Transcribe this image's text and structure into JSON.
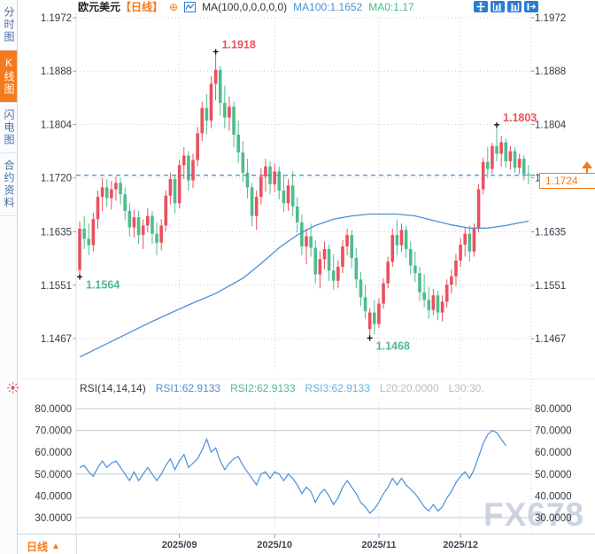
{
  "sidebar": {
    "items": [
      {
        "label": "分时图",
        "selected": false
      },
      {
        "label": "K线图",
        "selected": true
      },
      {
        "label": "闪电图",
        "selected": false
      },
      {
        "label": "合约资料",
        "selected": false
      }
    ]
  },
  "header": {
    "symbol": "欧元美元",
    "period": "【日线】",
    "expand_glyph": "⊕",
    "ma_label": "MA(100,0,0,0,0,0)",
    "ma100": "MA100:1.1652",
    "ma0": "MA0:1.17"
  },
  "toolbar": {
    "icons": [
      "crosshair",
      "compress-chart",
      "expand-chart",
      "shift-right"
    ]
  },
  "price_tag": {
    "value": "1.1724"
  },
  "rsi_header": {
    "name": "RSI(14,14,14)",
    "rsi1": "RSI1:62.9133",
    "rsi2": "RSI2:62.9133",
    "rsi3": "RSI3:62.9133",
    "l20": "L20:20.0000",
    "l30": "L30:30."
  },
  "bottom_bar": {
    "period_label": "日线",
    "arrow": "▲"
  },
  "watermark": "FX678",
  "colors": {
    "up_red": "#e9515f",
    "down_green": "#4fbc8c",
    "ma_blue": "#4a90d9",
    "dashed_blue": "#3f8fdd",
    "grid": "#c9ced6",
    "rsi_grid": "#c4c9d0",
    "axis_text": "#333b47",
    "tick_gray": "#8a95a5",
    "accent_orange": "#f57a1c",
    "rsi1_blue": "#4a90d9",
    "plus_black": "#111111",
    "annotation_high": "#e9515f",
    "annotation_low": "#4fbc8c"
  },
  "chart_data": [
    {
      "type": "candlestick",
      "title": "欧元美元 日线",
      "ylim": [
        1.1467,
        1.1972
      ],
      "y_ticks": [
        "1.1467",
        "1.1551",
        "1.1635",
        "1.1720",
        "1.1804",
        "1.1888",
        "1.1972"
      ],
      "x_ticks": [
        {
          "label": "2025/09",
          "idx": 22
        },
        {
          "label": "2025/10",
          "idx": 43
        },
        {
          "label": "2025/11",
          "idx": 66
        },
        {
          "label": "2025/12",
          "idx": 84
        }
      ],
      "current_price": 1.1724,
      "candles": [
        [
          1.1575,
          1.1652,
          1.1564,
          1.164
        ],
        [
          1.164,
          1.166,
          1.1608,
          1.1624
        ],
        [
          1.1624,
          1.1648,
          1.1598,
          1.1614
        ],
        [
          1.1614,
          1.1665,
          1.1604,
          1.1655
        ],
        [
          1.1655,
          1.17,
          1.164,
          1.169
        ],
        [
          1.169,
          1.172,
          1.1668,
          1.1705
        ],
        [
          1.1705,
          1.1718,
          1.1674,
          1.1688
        ],
        [
          1.1688,
          1.1715,
          1.167,
          1.1702
        ],
        [
          1.1702,
          1.1722,
          1.1684,
          1.1712
        ],
        [
          1.1712,
          1.172,
          1.1678,
          1.1694
        ],
        [
          1.1694,
          1.1705,
          1.1654,
          1.1668
        ],
        [
          1.1668,
          1.168,
          1.1628,
          1.1642
        ],
        [
          1.1642,
          1.167,
          1.1626,
          1.1658
        ],
        [
          1.1658,
          1.1668,
          1.1616,
          1.163
        ],
        [
          1.163,
          1.1655,
          1.1608,
          1.1645
        ],
        [
          1.1645,
          1.1672,
          1.1634,
          1.166
        ],
        [
          1.166,
          1.1668,
          1.1616,
          1.1632
        ],
        [
          1.1632,
          1.165,
          1.1598,
          1.1618
        ],
        [
          1.1618,
          1.1655,
          1.1606,
          1.1645
        ],
        [
          1.1645,
          1.17,
          1.1636,
          1.1692
        ],
        [
          1.1692,
          1.1728,
          1.1678,
          1.1718
        ],
        [
          1.1718,
          1.1724,
          1.1664,
          1.168
        ],
        [
          1.168,
          1.1748,
          1.1672,
          1.174
        ],
        [
          1.174,
          1.1768,
          1.1718,
          1.1755
        ],
        [
          1.1755,
          1.1762,
          1.17,
          1.1716
        ],
        [
          1.1716,
          1.1758,
          1.1704,
          1.1748
        ],
        [
          1.1748,
          1.18,
          1.1738,
          1.179
        ],
        [
          1.179,
          1.184,
          1.1778,
          1.183
        ],
        [
          1.183,
          1.1852,
          1.1788,
          1.181
        ],
        [
          1.181,
          1.188,
          1.1798,
          1.1868
        ],
        [
          1.1868,
          1.1918,
          1.1842,
          1.189
        ],
        [
          1.189,
          1.1896,
          1.1818,
          1.1838
        ],
        [
          1.1838,
          1.1865,
          1.1798,
          1.1815
        ],
        [
          1.1815,
          1.1848,
          1.1794,
          1.1832
        ],
        [
          1.1832,
          1.184,
          1.1768,
          1.1788
        ],
        [
          1.1788,
          1.181,
          1.1744,
          1.176
        ],
        [
          1.176,
          1.1778,
          1.1714,
          1.1728
        ],
        [
          1.1728,
          1.175,
          1.1688,
          1.1705
        ],
        [
          1.1705,
          1.1712,
          1.1644,
          1.166
        ],
        [
          1.166,
          1.17,
          1.1638,
          1.169
        ],
        [
          1.169,
          1.1735,
          1.1678,
          1.1722
        ],
        [
          1.1722,
          1.175,
          1.1698,
          1.1738
        ],
        [
          1.1738,
          1.1746,
          1.1694,
          1.171
        ],
        [
          1.171,
          1.1742,
          1.1698,
          1.173
        ],
        [
          1.173,
          1.1738,
          1.1686,
          1.17
        ],
        [
          1.17,
          1.1725,
          1.1666,
          1.168
        ],
        [
          1.168,
          1.1718,
          1.1668,
          1.1708
        ],
        [
          1.1708,
          1.173,
          1.166,
          1.1675
        ],
        [
          1.1675,
          1.169,
          1.1634,
          1.165
        ],
        [
          1.165,
          1.1662,
          1.1598,
          1.1612
        ],
        [
          1.1612,
          1.164,
          1.1584,
          1.1628
        ],
        [
          1.1628,
          1.1648,
          1.1596,
          1.161
        ],
        [
          1.161,
          1.1622,
          1.1554,
          1.1568
        ],
        [
          1.1568,
          1.1605,
          1.1546,
          1.1592
        ],
        [
          1.1592,
          1.162,
          1.1576,
          1.1608
        ],
        [
          1.1608,
          1.1615,
          1.1558,
          1.1574
        ],
        [
          1.1574,
          1.16,
          1.1544,
          1.1558
        ],
        [
          1.1558,
          1.159,
          1.1546,
          1.158
        ],
        [
          1.158,
          1.1622,
          1.157,
          1.1612
        ],
        [
          1.1612,
          1.164,
          1.1598,
          1.163
        ],
        [
          1.163,
          1.1638,
          1.1578,
          1.1594
        ],
        [
          1.1594,
          1.161,
          1.1546,
          1.156
        ],
        [
          1.156,
          1.1572,
          1.1518,
          1.1532
        ],
        [
          1.1532,
          1.1552,
          1.1498,
          1.151
        ],
        [
          1.1482,
          1.1515,
          1.1468,
          1.1508
        ],
        [
          1.1508,
          1.1528,
          1.1474,
          1.149
        ],
        [
          1.149,
          1.153,
          1.1484,
          1.1522
        ],
        [
          1.1522,
          1.1562,
          1.1514,
          1.1554
        ],
        [
          1.1554,
          1.1596,
          1.1546,
          1.1588
        ],
        [
          1.1588,
          1.164,
          1.158,
          1.163
        ],
        [
          1.163,
          1.1654,
          1.1598,
          1.1614
        ],
        [
          1.1614,
          1.1648,
          1.1604,
          1.1638
        ],
        [
          1.1638,
          1.1645,
          1.1594,
          1.1608
        ],
        [
          1.1608,
          1.162,
          1.1568,
          1.1582
        ],
        [
          1.1582,
          1.1604,
          1.1556,
          1.157
        ],
        [
          1.157,
          1.158,
          1.1526,
          1.154
        ],
        [
          1.154,
          1.1568,
          1.1516,
          1.1528
        ],
        [
          1.1528,
          1.1548,
          1.1498,
          1.1512
        ],
        [
          1.1512,
          1.1545,
          1.1504,
          1.1535
        ],
        [
          1.1535,
          1.1542,
          1.1496,
          1.1508
        ],
        [
          1.1508,
          1.1535,
          1.1494,
          1.1525
        ],
        [
          1.1525,
          1.156,
          1.1516,
          1.1552
        ],
        [
          1.1552,
          1.1576,
          1.1538,
          1.1565
        ],
        [
          1.1565,
          1.16,
          1.155,
          1.159
        ],
        [
          1.159,
          1.1625,
          1.158,
          1.1615
        ],
        [
          1.1615,
          1.1642,
          1.1596,
          1.1632
        ],
        [
          1.1632,
          1.1645,
          1.1588,
          1.1604
        ],
        [
          1.1604,
          1.1648,
          1.1596,
          1.164
        ],
        [
          1.164,
          1.171,
          1.1634,
          1.1702
        ],
        [
          1.1702,
          1.1752,
          1.1694,
          1.1745
        ],
        [
          1.1745,
          1.1768,
          1.172,
          1.1734
        ],
        [
          1.1734,
          1.1775,
          1.1726,
          1.177
        ],
        [
          1.177,
          1.1803,
          1.1746,
          1.1758
        ],
        [
          1.1758,
          1.1786,
          1.1738,
          1.1776
        ],
        [
          1.1776,
          1.1782,
          1.1736,
          1.1746
        ],
        [
          1.1746,
          1.177,
          1.1733,
          1.1762
        ],
        [
          1.1762,
          1.1768,
          1.1728,
          1.1736
        ],
        [
          1.1736,
          1.1758,
          1.1726,
          1.175
        ],
        [
          1.175,
          1.1756,
          1.1716,
          1.1726
        ],
        [
          1.1726,
          1.174,
          1.171,
          1.1724
        ]
      ],
      "ma100": {
        "name": "MA100",
        "last_value": 1.1652,
        "anchors": [
          [
            0,
            1.1438
          ],
          [
            8,
            1.1466
          ],
          [
            16,
            1.1494
          ],
          [
            24,
            1.152
          ],
          [
            30,
            1.1538
          ],
          [
            36,
            1.1562
          ],
          [
            40,
            1.1585
          ],
          [
            44,
            1.161
          ],
          [
            48,
            1.163
          ],
          [
            52,
            1.1645
          ],
          [
            56,
            1.1655
          ],
          [
            60,
            1.166
          ],
          [
            64,
            1.1663
          ],
          [
            70,
            1.1663
          ],
          [
            74,
            1.166
          ],
          [
            78,
            1.1653
          ],
          [
            82,
            1.1646
          ],
          [
            86,
            1.1641
          ],
          [
            90,
            1.1641
          ],
          [
            94,
            1.1645
          ],
          [
            99,
            1.1652
          ]
        ]
      },
      "annotations": [
        {
          "kind": "high",
          "idx": 30,
          "price": 1.1918,
          "label": "1.1918"
        },
        {
          "kind": "low",
          "idx": 0,
          "price": 1.1564,
          "label": "1.1564"
        },
        {
          "kind": "low",
          "idx": 64,
          "price": 1.1468,
          "label": "1.1468"
        },
        {
          "kind": "high",
          "idx": 92,
          "price": 1.1803,
          "label": "1.1803"
        }
      ]
    },
    {
      "type": "line",
      "name": "RSI(14,14,14)",
      "ylim": [
        25,
        85
      ],
      "y_ticks": [
        "30.0000",
        "40.0000",
        "50.0000",
        "60.0000",
        "70.0000",
        "80.0000"
      ],
      "gridline_values": [
        80,
        70,
        50,
        30
      ],
      "final_value": 62.9133,
      "values": [
        53,
        54,
        51,
        49,
        53,
        56,
        53,
        55,
        56,
        53,
        50,
        47,
        51,
        47,
        50,
        53,
        50,
        47,
        50,
        54,
        57,
        52,
        56,
        59,
        53,
        55,
        57,
        61,
        66,
        60,
        62,
        56,
        52,
        55,
        57,
        58,
        54,
        51,
        48,
        45,
        50,
        51,
        48,
        51,
        50,
        47,
        50,
        48,
        45,
        41,
        44,
        42,
        37,
        41,
        43,
        40,
        36,
        39,
        44,
        47,
        44,
        41,
        37,
        35,
        32,
        34,
        37,
        41,
        44,
        48,
        45,
        48,
        45,
        43,
        41,
        38,
        35,
        33,
        36,
        33,
        35,
        39,
        42,
        46,
        49,
        51,
        48,
        52,
        58,
        64,
        68,
        70,
        69,
        66,
        63
      ]
    }
  ]
}
